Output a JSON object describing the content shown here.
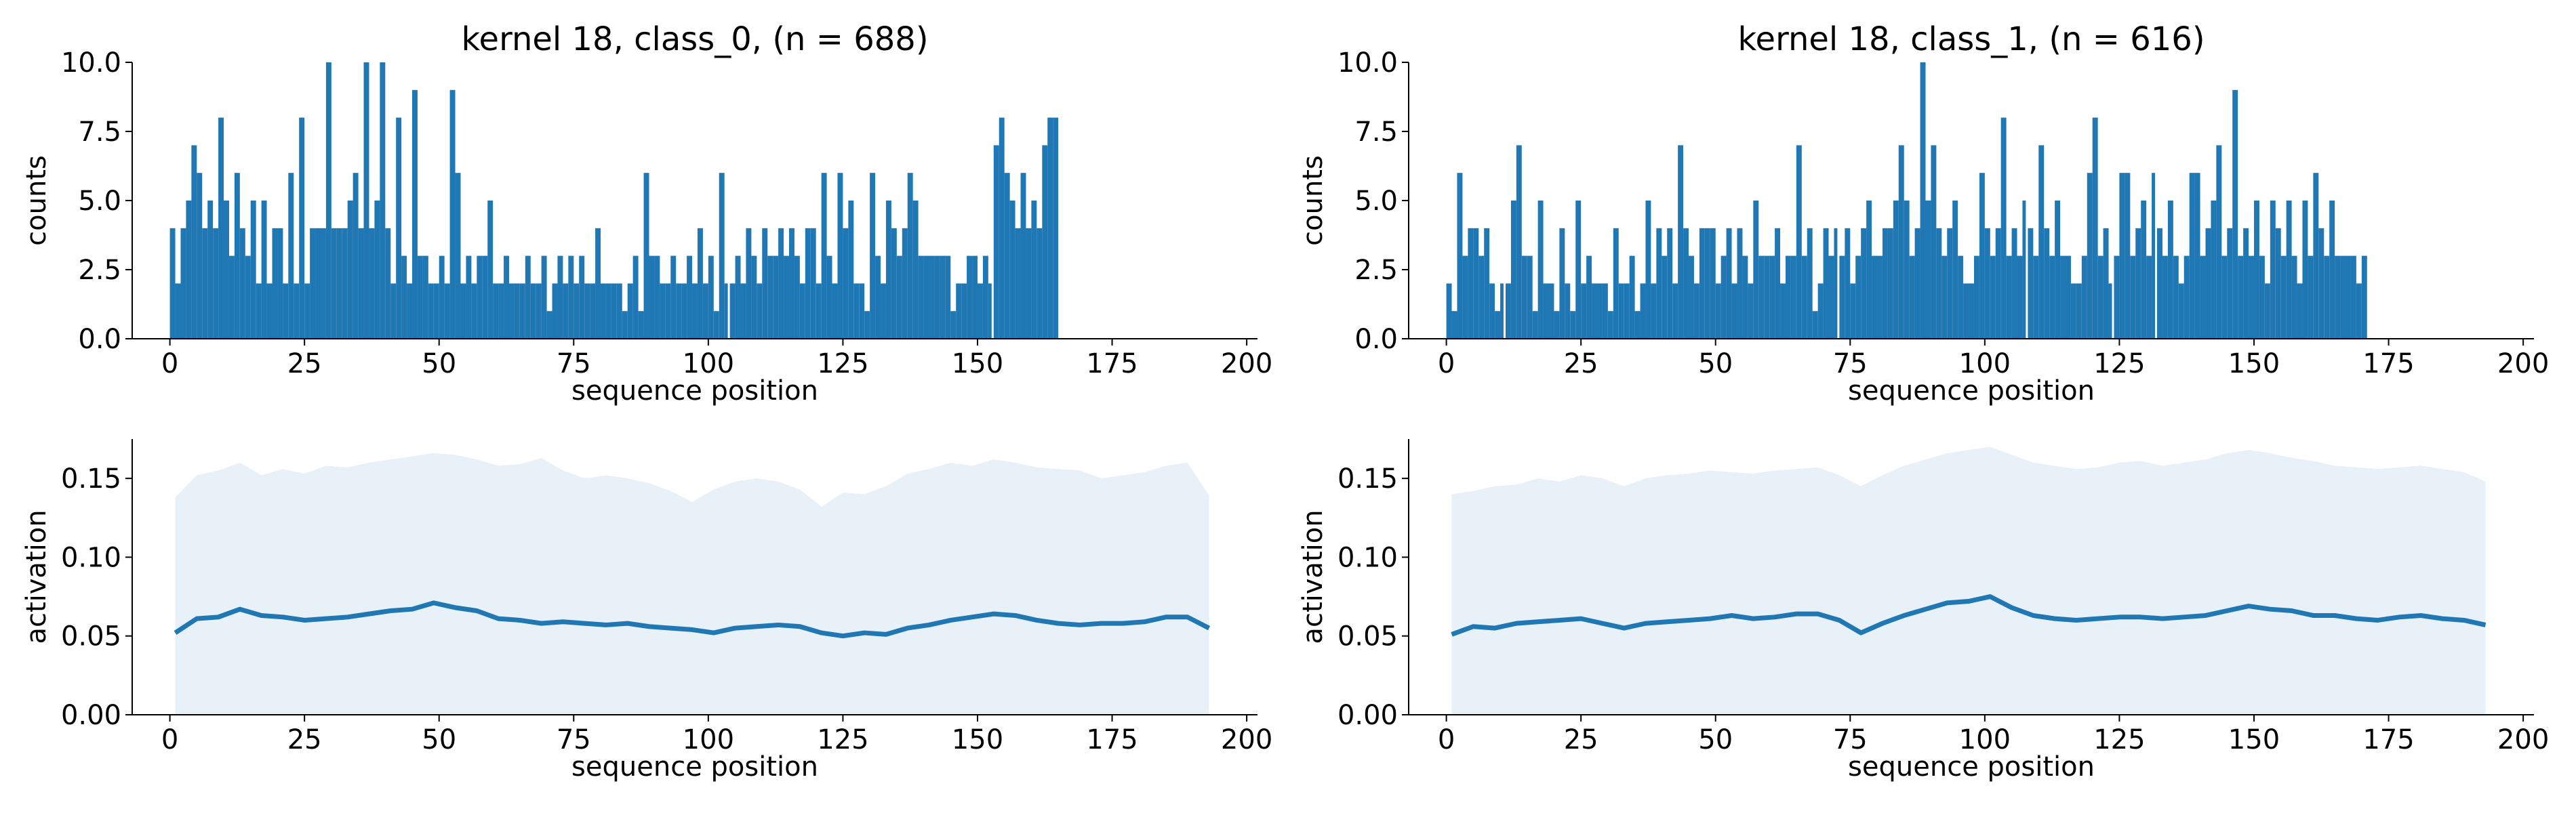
{
  "chart_data": [
    {
      "type": "bar",
      "title": "kernel 18, class_0, (n = 688)",
      "xlabel": "sequence position",
      "ylabel": "counts",
      "xlim": [
        -7,
        202
      ],
      "ylim": [
        0,
        10
      ],
      "xticks": [
        0,
        25,
        50,
        75,
        100,
        125,
        150,
        175,
        200
      ],
      "yticks": [
        0,
        2.5,
        5,
        7.5,
        10
      ],
      "ytick_labels": [
        "0.0",
        "2.5",
        "5.0",
        "7.5",
        "10.0"
      ],
      "color": "#1f77b4",
      "x_start": 0,
      "values": [
        4,
        2,
        4,
        5,
        7,
        6,
        4,
        5,
        4,
        8,
        5,
        3,
        6,
        4,
        3,
        5,
        2,
        5,
        2,
        4,
        4,
        2,
        6,
        2,
        8,
        2,
        4,
        4,
        4,
        10,
        4,
        4,
        4,
        5,
        6,
        4,
        10,
        4,
        5,
        10,
        4,
        2,
        8,
        3,
        2,
        9,
        3,
        3,
        2,
        2,
        3,
        2,
        9,
        6,
        2,
        3,
        2,
        3,
        3,
        5,
        2,
        2,
        3,
        2,
        2,
        2,
        3,
        2,
        2,
        3,
        1,
        2,
        3,
        2,
        3,
        2,
        3,
        2,
        2,
        4,
        2,
        2,
        2,
        2,
        1,
        2,
        3,
        1,
        6,
        3,
        3,
        2,
        2,
        3,
        2,
        2,
        3,
        2,
        4,
        2,
        3,
        1,
        6,
        2,
        2,
        3,
        2,
        4,
        3,
        2,
        4,
        3,
        3,
        4,
        3,
        4,
        3,
        2,
        4,
        4,
        2,
        6,
        3,
        2,
        6,
        4,
        5,
        2,
        2,
        1,
        6,
        3,
        2,
        5,
        4,
        3,
        4,
        6,
        5,
        3,
        3,
        3,
        3,
        3,
        3,
        1,
        2,
        2,
        3,
        3,
        2,
        3,
        2,
        7,
        8,
        6,
        5,
        4,
        6,
        4,
        5,
        4,
        7,
        8,
        8
      ],
      "gap_positions": [
        103,
        152
      ]
    },
    {
      "type": "bar",
      "title": "kernel 18, class_1, (n = 616)",
      "xlabel": "sequence position",
      "ylabel": "counts",
      "xlim": [
        -7,
        202
      ],
      "ylim": [
        0,
        10
      ],
      "xticks": [
        0,
        25,
        50,
        75,
        100,
        125,
        150,
        175,
        200
      ],
      "yticks": [
        0,
        2.5,
        5,
        7.5,
        10
      ],
      "ytick_labels": [
        "0.0",
        "2.5",
        "5.0",
        "7.5",
        "10.0"
      ],
      "color": "#1f77b4",
      "x_start": 0,
      "values": [
        2,
        1,
        6,
        3,
        4,
        4,
        3,
        4,
        2,
        1,
        2,
        2,
        5,
        7,
        3,
        3,
        1,
        5,
        2,
        2,
        1,
        4,
        2,
        1,
        5,
        2,
        3,
        2,
        2,
        2,
        1,
        4,
        2,
        2,
        3,
        1,
        2,
        5,
        2,
        4,
        3,
        4,
        2,
        7,
        4,
        3,
        2,
        4,
        4,
        4,
        2,
        3,
        4,
        2,
        4,
        3,
        2,
        5,
        3,
        3,
        3,
        4,
        2,
        3,
        3,
        7,
        3,
        4,
        1,
        2,
        4,
        3,
        4,
        3,
        4,
        2,
        3,
        4,
        5,
        3,
        3,
        4,
        4,
        5,
        7,
        5,
        3,
        4,
        10,
        5,
        7,
        4,
        3,
        4,
        5,
        3,
        2,
        2,
        3,
        6,
        4,
        3,
        4,
        8,
        3,
        4,
        3,
        5,
        4,
        3,
        7,
        4,
        3,
        5,
        3,
        3,
        2,
        2,
        3,
        6,
        8,
        3,
        4,
        2,
        3,
        6,
        6,
        3,
        4,
        5,
        3,
        6,
        4,
        3,
        5,
        3,
        2,
        3,
        6,
        6,
        3,
        4,
        5,
        7,
        3,
        4,
        9,
        3,
        4,
        3,
        5,
        3,
        2,
        5,
        4,
        3,
        5,
        3,
        2,
        5,
        3,
        6,
        4,
        3,
        5,
        3,
        3,
        3,
        3,
        2,
        3
      ],
      "gap_positions": [
        10,
        72,
        107,
        123,
        131,
        177
      ]
    },
    {
      "type": "line",
      "xlabel": "sequence position",
      "ylabel": "activation",
      "xlim": [
        -7,
        202
      ],
      "ylim": [
        0,
        0.175
      ],
      "xticks": [
        0,
        25,
        50,
        75,
        100,
        125,
        150,
        175,
        200
      ],
      "yticks": [
        0,
        0.05,
        0.1,
        0.15
      ],
      "ytick_labels": [
        "0.00",
        "0.05",
        "0.10",
        "0.15"
      ],
      "color": "#1f77b4",
      "band_color": "#e8f0f8",
      "x": [
        1,
        5,
        9,
        13,
        17,
        21,
        25,
        29,
        33,
        37,
        41,
        45,
        49,
        53,
        57,
        61,
        65,
        69,
        73,
        77,
        81,
        85,
        89,
        93,
        97,
        101,
        105,
        109,
        113,
        117,
        121,
        125,
        129,
        133,
        137,
        141,
        145,
        149,
        153,
        157,
        161,
        165,
        169,
        173,
        177,
        181,
        185,
        189,
        193
      ],
      "mean": [
        0.052,
        0.061,
        0.062,
        0.067,
        0.063,
        0.062,
        0.06,
        0.061,
        0.062,
        0.064,
        0.066,
        0.067,
        0.071,
        0.068,
        0.066,
        0.061,
        0.06,
        0.058,
        0.059,
        0.058,
        0.057,
        0.058,
        0.056,
        0.055,
        0.054,
        0.052,
        0.055,
        0.056,
        0.057,
        0.056,
        0.052,
        0.05,
        0.052,
        0.051,
        0.055,
        0.057,
        0.06,
        0.062,
        0.064,
        0.063,
        0.06,
        0.058,
        0.057,
        0.058,
        0.058,
        0.059,
        0.062,
        0.062,
        0.055
      ],
      "upper": [
        0.138,
        0.152,
        0.155,
        0.16,
        0.152,
        0.156,
        0.153,
        0.158,
        0.157,
        0.16,
        0.162,
        0.164,
        0.166,
        0.165,
        0.162,
        0.158,
        0.159,
        0.163,
        0.155,
        0.15,
        0.152,
        0.15,
        0.147,
        0.142,
        0.135,
        0.143,
        0.148,
        0.15,
        0.148,
        0.143,
        0.132,
        0.141,
        0.14,
        0.145,
        0.153,
        0.156,
        0.16,
        0.158,
        0.162,
        0.16,
        0.157,
        0.156,
        0.155,
        0.15,
        0.152,
        0.154,
        0.158,
        0.16,
        0.139
      ]
    },
    {
      "type": "line",
      "xlabel": "sequence position",
      "ylabel": "activation",
      "xlim": [
        -7,
        202
      ],
      "ylim": [
        0,
        0.175
      ],
      "xticks": [
        0,
        25,
        50,
        75,
        100,
        125,
        150,
        175,
        200
      ],
      "yticks": [
        0,
        0.05,
        0.1,
        0.15
      ],
      "ytick_labels": [
        "0.00",
        "0.05",
        "0.10",
        "0.15"
      ],
      "color": "#1f77b4",
      "band_color": "#e8f0f8",
      "x": [
        1,
        5,
        9,
        13,
        17,
        21,
        25,
        29,
        33,
        37,
        41,
        45,
        49,
        53,
        57,
        61,
        65,
        69,
        73,
        77,
        81,
        85,
        89,
        93,
        97,
        101,
        105,
        109,
        113,
        117,
        121,
        125,
        129,
        133,
        137,
        141,
        145,
        149,
        153,
        157,
        161,
        165,
        169,
        173,
        177,
        181,
        185,
        189,
        193
      ],
      "mean": [
        0.051,
        0.056,
        0.055,
        0.058,
        0.059,
        0.06,
        0.061,
        0.058,
        0.055,
        0.058,
        0.059,
        0.06,
        0.061,
        0.063,
        0.061,
        0.062,
        0.064,
        0.064,
        0.06,
        0.052,
        0.058,
        0.063,
        0.067,
        0.071,
        0.072,
        0.075,
        0.068,
        0.063,
        0.061,
        0.06,
        0.061,
        0.062,
        0.062,
        0.061,
        0.062,
        0.063,
        0.066,
        0.069,
        0.067,
        0.066,
        0.063,
        0.063,
        0.061,
        0.06,
        0.062,
        0.063,
        0.061,
        0.06,
        0.057
      ],
      "upper": [
        0.14,
        0.142,
        0.145,
        0.146,
        0.15,
        0.148,
        0.152,
        0.15,
        0.145,
        0.15,
        0.152,
        0.153,
        0.155,
        0.154,
        0.153,
        0.155,
        0.156,
        0.157,
        0.152,
        0.145,
        0.152,
        0.158,
        0.162,
        0.166,
        0.168,
        0.17,
        0.165,
        0.16,
        0.158,
        0.156,
        0.157,
        0.16,
        0.161,
        0.158,
        0.16,
        0.162,
        0.166,
        0.168,
        0.166,
        0.163,
        0.161,
        0.158,
        0.157,
        0.156,
        0.157,
        0.158,
        0.156,
        0.154,
        0.148
      ]
    }
  ]
}
